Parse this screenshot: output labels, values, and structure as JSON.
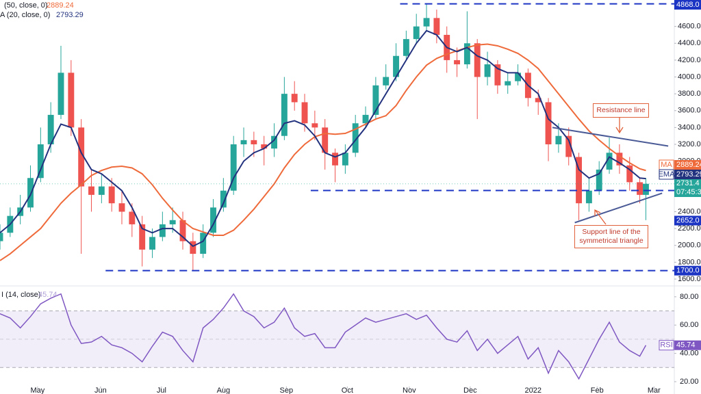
{
  "chart_data": [
    {
      "type": "candlestick",
      "x": [
        0,
        5,
        10,
        15,
        20,
        25,
        30,
        35,
        40,
        45,
        50,
        55,
        60,
        65,
        70,
        75,
        80,
        85,
        90,
        95,
        100,
        105,
        110,
        115,
        120,
        125,
        130,
        135,
        140,
        145,
        150,
        155,
        160,
        165,
        170,
        175,
        180,
        185,
        190,
        195,
        200,
        205,
        210,
        215,
        220,
        225,
        230,
        235,
        240,
        245,
        250,
        255,
        260,
        265,
        270,
        275,
        280,
        285,
        290,
        295,
        300,
        305,
        310,
        315,
        318
      ],
      "open": [
        2050,
        2150,
        2350,
        2450,
        2800,
        3200,
        3550,
        4050,
        3400,
        2700,
        2600,
        2700,
        2500,
        2400,
        2250,
        1950,
        2100,
        2250,
        2300,
        2050,
        1900,
        2150,
        2450,
        2650,
        3200,
        3250,
        3200,
        3150,
        3300,
        3800,
        3700,
        3450,
        3400,
        3100,
        2950,
        3100,
        3450,
        3550,
        3900,
        4000,
        4250,
        4450,
        4600,
        4700,
        4500,
        4200,
        4150,
        4400,
        4000,
        4150,
        3900,
        3950,
        4050,
        3750,
        3700,
        3200,
        3300,
        3050,
        2500,
        2650,
        2900,
        3100,
        2950,
        2750,
        2600
      ],
      "high": [
        2250,
        2450,
        2600,
        2950,
        3400,
        3700,
        4370,
        4200,
        3500,
        2900,
        2850,
        2800,
        2650,
        2500,
        2350,
        2200,
        2400,
        2450,
        2400,
        2150,
        2250,
        2550,
        2800,
        3300,
        3400,
        3350,
        3300,
        3450,
        4000,
        3950,
        3800,
        3600,
        3500,
        3150,
        3200,
        3550,
        3650,
        4000,
        4150,
        4400,
        4550,
        4750,
        4868,
        4800,
        4600,
        4350,
        4780,
        4450,
        4300,
        4200,
        4050,
        4150,
        4100,
        3850,
        3750,
        3450,
        3400,
        3100,
        2800,
        3000,
        3280,
        3200,
        3050,
        2800,
        2800
      ],
      "low": [
        1950,
        2100,
        2250,
        2400,
        2750,
        3100,
        3500,
        3300,
        1900,
        2400,
        2500,
        2400,
        2250,
        2100,
        1750,
        1850,
        2050,
        2150,
        1950,
        1700,
        1850,
        2100,
        2400,
        2600,
        3050,
        3050,
        2950,
        3050,
        3250,
        3600,
        3350,
        3250,
        2900,
        2750,
        2850,
        3050,
        3400,
        3500,
        3850,
        3950,
        4200,
        4400,
        4550,
        4400,
        4050,
        4000,
        4100,
        3500,
        3900,
        3800,
        3800,
        3900,
        3650,
        3550,
        3000,
        3100,
        2950,
        2300,
        2400,
        2600,
        2850,
        2850,
        2650,
        2500,
        2300
      ],
      "close": [
        2150,
        2350,
        2450,
        2800,
        3200,
        3550,
        4050,
        3400,
        2700,
        2600,
        2700,
        2500,
        2400,
        2250,
        1950,
        2100,
        2250,
        2300,
        2050,
        1900,
        2150,
        2450,
        2650,
        3200,
        3250,
        3200,
        3150,
        3300,
        3800,
        3700,
        3450,
        3400,
        3100,
        2950,
        3100,
        3450,
        3550,
        3900,
        4000,
        4250,
        4450,
        4600,
        4700,
        4500,
        4200,
        4150,
        4400,
        4000,
        4150,
        3900,
        3950,
        4050,
        3750,
        3700,
        3200,
        3300,
        3050,
        2500,
        2650,
        2900,
        3100,
        2950,
        2750,
        2600,
        2731.4
      ],
      "up_color": "#26a69a",
      "down_color": "#ef5350",
      "last_price_countdown": "07:45:3",
      "xlim": [
        0,
        332
      ],
      "xticks": [
        {
          "value": 18.5,
          "label": "May"
        },
        {
          "value": 49.5,
          "label": "Jun"
        },
        {
          "value": 79.5,
          "label": "Jul"
        },
        {
          "value": 110,
          "label": "Aug"
        },
        {
          "value": 141,
          "label": "Sep"
        },
        {
          "value": 171,
          "label": "Oct"
        },
        {
          "value": 201.5,
          "label": "Nov"
        },
        {
          "value": 231.5,
          "label": "Dec"
        },
        {
          "value": 262.5,
          "label": "2022"
        },
        {
          "value": 294,
          "label": "Feb"
        },
        {
          "value": 322,
          "label": "Mar"
        }
      ],
      "ylim": [
        1543,
        4914
      ],
      "yticks": [
        {
          "value": 1600,
          "label": "1600.0"
        },
        {
          "value": 1800,
          "label": "1800.0"
        },
        {
          "value": 2000,
          "label": "2000.0"
        },
        {
          "value": 2200,
          "label": "2200.0"
        },
        {
          "value": 2400,
          "label": "2400.0"
        },
        {
          "value": 3000,
          "label": "3000.0"
        },
        {
          "value": 3200,
          "label": "3200.0"
        },
        {
          "value": 3400,
          "label": "3400.0"
        },
        {
          "value": 3600,
          "label": "3600.0"
        },
        {
          "value": 3800,
          "label": "3800.0"
        },
        {
          "value": 4000,
          "label": "4000.0"
        },
        {
          "value": 4200,
          "label": "4200.0"
        },
        {
          "value": 4400,
          "label": "4400.0"
        },
        {
          "value": 4600,
          "label": "4600.0"
        }
      ],
      "series": [
        {
          "name": "(50, close, 0)",
          "short": "MA",
          "color": "#ef6a3a",
          "values": [
            1820,
            1900,
            2000,
            2100,
            2200,
            2350,
            2500,
            2620,
            2720,
            2830,
            2890,
            2930,
            2940,
            2920,
            2850,
            2720,
            2560,
            2420,
            2290,
            2200,
            2160,
            2120,
            2120,
            2180,
            2300,
            2430,
            2580,
            2730,
            2920,
            3080,
            3200,
            3290,
            3330,
            3320,
            3330,
            3380,
            3440,
            3500,
            3540,
            3660,
            3840,
            4000,
            4140,
            4220,
            4270,
            4310,
            4350,
            4380,
            4390,
            4370,
            4330,
            4280,
            4200,
            4100,
            3950,
            3800,
            3650,
            3500,
            3360,
            3250,
            3150,
            3060,
            2980,
            2910,
            2889.24
          ]
        },
        {
          "name": "A (20, close, 0)",
          "short": "EMA",
          "color": "#22327e",
          "values": [
            2150,
            2250,
            2400,
            2600,
            2900,
            3200,
            3440,
            3400,
            3100,
            2900,
            2850,
            2750,
            2650,
            2450,
            2200,
            2150,
            2200,
            2200,
            2100,
            1990,
            2050,
            2250,
            2500,
            2800,
            3000,
            3100,
            3150,
            3250,
            3450,
            3480,
            3430,
            3300,
            3100,
            3050,
            3100,
            3250,
            3400,
            3600,
            3800,
            4000,
            4200,
            4400,
            4550,
            4500,
            4350,
            4300,
            4350,
            4250,
            4200,
            4100,
            4050,
            4050,
            3900,
            3800,
            3500,
            3400,
            3250,
            2900,
            2800,
            2850,
            3050,
            2980,
            2900,
            2800,
            2793.29
          ]
        }
      ],
      "horizontal_lines": [
        {
          "value": 4868,
          "label": "4868.0",
          "x_from": 197
        },
        {
          "value": 2652,
          "label": "2652.0",
          "x_from": 153
        },
        {
          "value": 1700,
          "label": "1700.0",
          "x_from": 52
        }
      ],
      "horizontal_line_color": "#1c34c4",
      "trend_lines": [
        {
          "x": [
            272,
            329
          ],
          "values": [
            3400,
            3180
          ]
        },
        {
          "x": [
            283,
            326
          ],
          "values": [
            2270,
            2620
          ]
        }
      ],
      "trend_line_color": "#4a5a96",
      "annotations": [
        {
          "text": "Resistance line"
        },
        {
          "text": "Support line of the symmetrical triangle"
        }
      ]
    },
    {
      "type": "line",
      "series": [
        {
          "name": "I (14, close)",
          "short": "RSI",
          "color": "#7e57c2",
          "values": [
            68,
            65,
            58,
            66,
            75,
            79,
            82,
            60,
            47,
            48,
            52,
            46,
            44,
            40,
            34,
            45,
            55,
            52,
            42,
            34,
            58,
            64,
            72,
            82,
            70,
            66,
            58,
            62,
            72,
            58,
            52,
            54,
            44,
            44,
            55,
            60,
            65,
            62,
            64,
            66,
            68,
            64,
            67,
            58,
            50,
            48,
            56,
            42,
            50,
            40,
            46,
            52,
            36,
            44,
            26,
            42,
            34,
            22,
            36,
            50,
            62,
            48,
            42,
            38,
            45.74
          ]
        }
      ],
      "bands": {
        "upper": 70,
        "middle": 50,
        "lower": 30
      },
      "ylim": [
        16.6,
        86.7
      ],
      "yticks": [
        {
          "value": 20,
          "label": "20.00"
        },
        {
          "value": 40,
          "label": "40.00"
        },
        {
          "value": 60,
          "label": "60.00"
        },
        {
          "value": 80,
          "label": "80.00"
        }
      ]
    }
  ]
}
